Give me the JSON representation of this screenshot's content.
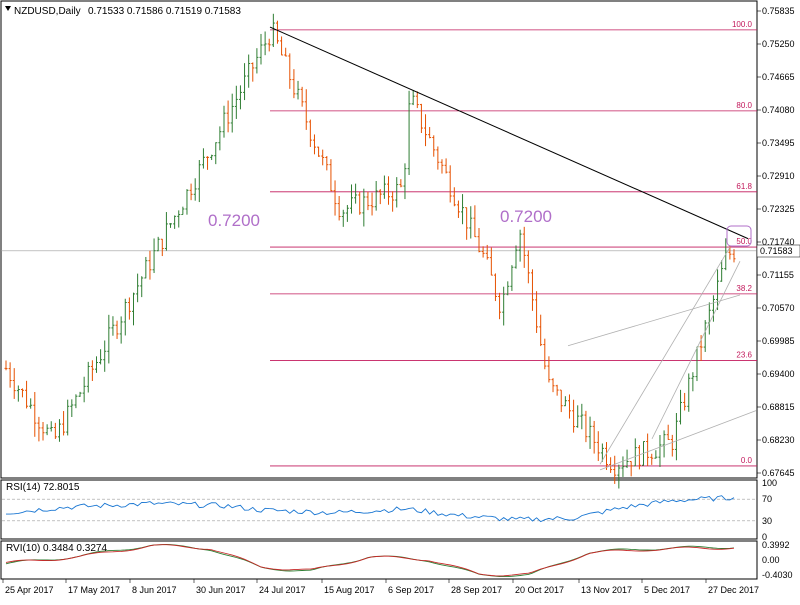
{
  "header": {
    "symbol_tf": "NZDUSD,Daily",
    "ohlc": "0.71533 0.71586 0.71519 0.71583"
  },
  "price_axis": {
    "labels": [
      "0.75835",
      "0.75250",
      "0.74665",
      "0.74080",
      "0.73495",
      "0.72910",
      "0.72325",
      "0.71740",
      "0.71155",
      "0.70570",
      "0.69985",
      "0.69400",
      "0.68815",
      "0.68230",
      "0.67645"
    ],
    "current": "0.71583"
  },
  "time_axis": [
    "25 Apr 2017",
    "17 May 2017",
    "8 Jun 2017",
    "30 Jun 2017",
    "24 Jul 2017",
    "15 Aug 2017",
    "6 Sep 2017",
    "28 Sep 2017",
    "20 Oct 2017",
    "13 Nov 2017",
    "5 Dec 2017",
    "27 Dec 2017"
  ],
  "annotations": [
    "0.7200",
    "0.7200"
  ],
  "colors": {
    "bull": "#2e7d32",
    "bear": "#e65100",
    "fib": "#c2185b",
    "rsi": "#1976d2",
    "rvi_main": "#2e7d32",
    "rvi_signal": "#c62828"
  },
  "chart_data": [
    {
      "type": "candlestick",
      "title": "NZDUSD,Daily",
      "ylim": [
        0.675,
        0.76
      ],
      "key_points": [
        {
          "date": "25 Apr 2017",
          "price": 0.695
        },
        {
          "date": "11 May 2017",
          "price": 0.682
        },
        {
          "date": "30 Jun 2017",
          "price": 0.73
        },
        {
          "date": "27 Jul 2017",
          "price": 0.755
        },
        {
          "date": "17 Aug 2017",
          "price": 0.723
        },
        {
          "date": "6 Sep 2017",
          "price": 0.727
        },
        {
          "date": "8 Sep 2017",
          "price": 0.743
        },
        {
          "date": "28 Sep 2017",
          "price": 0.715
        },
        {
          "date": "4 Oct 2017",
          "price": 0.706
        },
        {
          "date": "11 Oct 2017",
          "price": 0.72
        },
        {
          "date": "20 Oct 2017",
          "price": 0.692
        },
        {
          "date": "13 Nov 2017",
          "price": 0.678
        },
        {
          "date": "5 Dec 2017",
          "price": 0.682
        },
        {
          "date": "27 Dec 2017",
          "price": 0.715
        },
        {
          "date": "29 Dec 2017",
          "price": 0.71583
        }
      ],
      "fibonacci": [
        {
          "label": "100.0",
          "price": 0.755
        },
        {
          "label": "80.0",
          "price": 0.74065
        },
        {
          "label": "61.8",
          "price": 0.7263
        },
        {
          "label": "50.0",
          "price": 0.7165
        },
        {
          "label": "38.2",
          "price": 0.7082
        },
        {
          "label": "23.6",
          "price": 0.6964
        },
        {
          "label": "0.0",
          "price": 0.6777
        }
      ]
    },
    {
      "type": "line",
      "title": "RSI(14) 72.8015",
      "ylim": [
        0,
        100
      ],
      "levels": [
        "100",
        "70",
        "30",
        "0"
      ],
      "points": [
        [
          0,
          45
        ],
        [
          0.08,
          55
        ],
        [
          0.2,
          62
        ],
        [
          0.3,
          58
        ],
        [
          0.35,
          50
        ],
        [
          0.45,
          45
        ],
        [
          0.55,
          52
        ],
        [
          0.62,
          40
        ],
        [
          0.7,
          32
        ],
        [
          0.78,
          35
        ],
        [
          0.85,
          55
        ],
        [
          0.92,
          68
        ],
        [
          1,
          72.8
        ]
      ]
    },
    {
      "type": "line",
      "title": "RVI(10) 0.3484 0.3274",
      "ylim": [
        -0.45,
        0.45
      ],
      "levels": [
        "0.3992",
        "0.00",
        "-0.4030"
      ],
      "series": [
        {
          "values": [
            [
              0,
              -0.1
            ],
            [
              0.1,
              0.1
            ],
            [
              0.2,
              0.4
            ],
            [
              0.28,
              0.3
            ],
            [
              0.35,
              -0.2
            ],
            [
              0.42,
              -0.3
            ],
            [
              0.5,
              0.1
            ],
            [
              0.58,
              0.0
            ],
            [
              0.65,
              -0.4
            ],
            [
              0.72,
              -0.4
            ],
            [
              0.8,
              0.2
            ],
            [
              0.88,
              0.3
            ],
            [
              1,
              0.35
            ]
          ]
        },
        {
          "values": [
            [
              0,
              -0.08
            ],
            [
              0.1,
              0.08
            ],
            [
              0.2,
              0.38
            ],
            [
              0.28,
              0.32
            ],
            [
              0.35,
              -0.18
            ],
            [
              0.42,
              -0.28
            ],
            [
              0.5,
              0.08
            ],
            [
              0.58,
              0.02
            ],
            [
              0.65,
              -0.38
            ],
            [
              0.72,
              -0.38
            ],
            [
              0.8,
              0.18
            ],
            [
              0.88,
              0.28
            ],
            [
              1,
              0.33
            ]
          ]
        }
      ]
    }
  ]
}
